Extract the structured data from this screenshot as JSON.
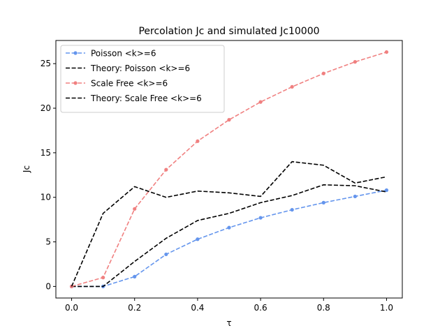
{
  "chart_data": {
    "type": "line",
    "title": "Percolation Jc and simulated Jc10000",
    "xlabel": "τ",
    "ylabel": "Jc",
    "xlim": [
      -0.05,
      1.05
    ],
    "ylim": [
      -1.3,
      27.6
    ],
    "x_ticks": [
      0.0,
      0.2,
      0.4,
      0.6,
      0.8,
      1.0
    ],
    "x_tick_labels": [
      "0.0",
      "0.2",
      "0.4",
      "0.6",
      "0.8",
      "1.0"
    ],
    "y_ticks": [
      0,
      5,
      10,
      15,
      20,
      25
    ],
    "y_tick_labels": [
      "0",
      "5",
      "10",
      "15",
      "20",
      "25"
    ],
    "grid": false,
    "legend_position": "top-left",
    "x": [
      0.0,
      0.1,
      0.2,
      0.3,
      0.4,
      0.5,
      0.6,
      0.7,
      0.8,
      0.9,
      1.0
    ],
    "series": [
      {
        "name": "Poisson <k>=6",
        "color": "#6495ed",
        "style": "dashed",
        "marker": "circle",
        "values": [
          0.0,
          0.0,
          1.1,
          3.6,
          5.3,
          6.6,
          7.7,
          8.6,
          9.4,
          10.1,
          10.8
        ]
      },
      {
        "name": "Theory: Poisson <k>=6",
        "color": "#000000",
        "style": "dashed",
        "marker": "none",
        "values": [
          0.0,
          0.0,
          2.8,
          5.4,
          7.4,
          8.2,
          9.4,
          10.2,
          11.4,
          11.3,
          10.6
        ]
      },
      {
        "name": "Scale Free <k>=6",
        "color": "#f08080",
        "style": "dashed",
        "marker": "circle",
        "values": [
          0.0,
          1.0,
          8.7,
          13.1,
          16.3,
          18.7,
          20.7,
          22.4,
          23.9,
          25.2,
          26.3
        ]
      },
      {
        "name": "Theory: Scale Free <k>=6",
        "color": "#000000",
        "style": "dashed",
        "marker": "none",
        "values": [
          0.0,
          8.2,
          11.2,
          10.0,
          10.7,
          10.5,
          10.1,
          14.0,
          13.6,
          11.6,
          12.3
        ]
      }
    ]
  }
}
